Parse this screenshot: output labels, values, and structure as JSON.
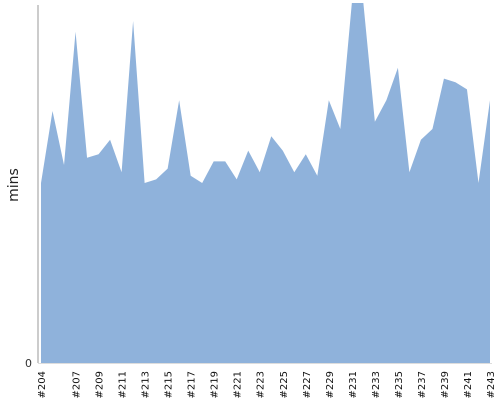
{
  "chart_data": {
    "type": "area",
    "title": "",
    "xlabel": "",
    "ylabel": "mins",
    "ylim": [
      0,
      100
    ],
    "y_tick_labels": [
      "0"
    ],
    "grid": false,
    "legend": "none",
    "color": "#8fb2db",
    "axis_color": "#999999",
    "x": [
      "#204",
      "#205",
      "#206",
      "#207",
      "#208",
      "#209",
      "#210",
      "#211",
      "#212",
      "#213",
      "#214",
      "#215",
      "#216",
      "#217",
      "#218",
      "#219",
      "#220",
      "#221",
      "#222",
      "#223",
      "#224",
      "#225",
      "#226",
      "#227",
      "#228",
      "#229",
      "#230",
      "#231",
      "#232",
      "#233",
      "#234",
      "#235",
      "#236",
      "#237",
      "#238",
      "#239",
      "#240",
      "#241",
      "#242",
      "#243"
    ],
    "x_tick_labels": [
      "#204",
      "#207",
      "#209",
      "#211",
      "#213",
      "#215",
      "#217",
      "#219",
      "#221",
      "#223",
      "#225",
      "#227",
      "#229",
      "#231",
      "#233",
      "#235",
      "#237",
      "#239",
      "#241",
      "#243"
    ],
    "values": [
      50,
      70,
      55,
      92,
      57,
      58,
      62,
      53,
      95,
      50,
      51,
      54,
      73,
      52,
      50,
      56,
      56,
      51,
      59,
      53,
      63,
      59,
      53,
      58,
      52,
      73,
      65,
      100,
      100,
      67,
      73,
      82,
      53,
      62,
      65,
      79,
      78,
      76,
      50,
      73
    ]
  }
}
